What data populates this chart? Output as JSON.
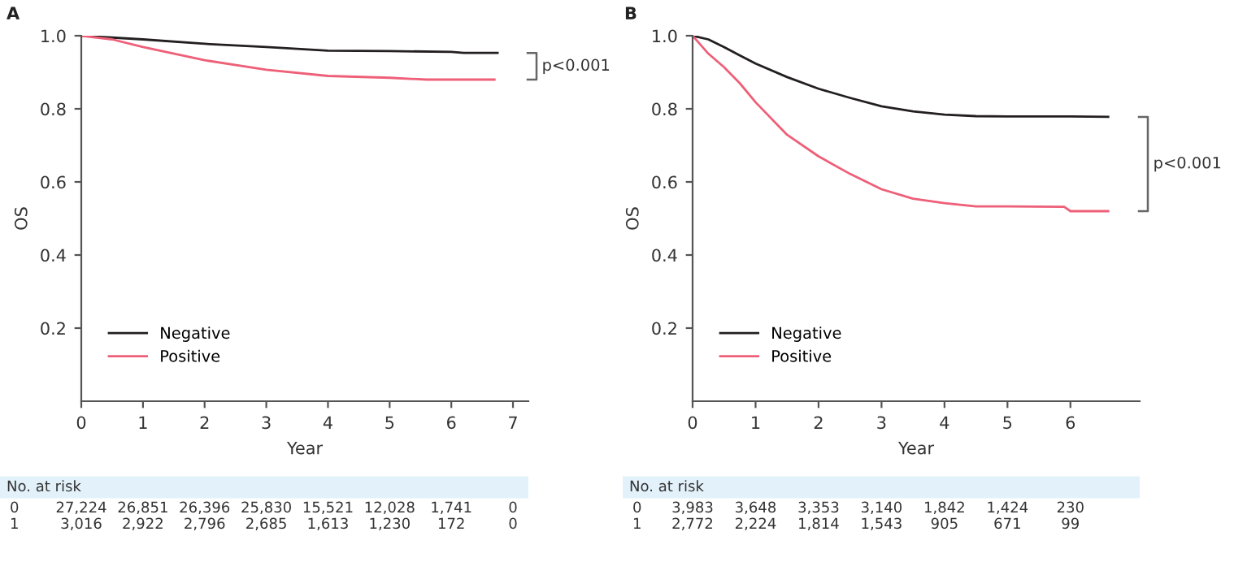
{
  "chart_data": [
    {
      "type": "line",
      "title": "A",
      "xlabel": "Year",
      "ylabel": "OS",
      "xlim": [
        0,
        7.25
      ],
      "ylim": [
        0,
        1.0
      ],
      "xticks": [
        0,
        1,
        2,
        3,
        4,
        5,
        6,
        7
      ],
      "yticks": [
        0.2,
        0.4,
        0.6,
        0.8,
        {
          "value": 1.0,
          "label": "1.0"
        }
      ],
      "grid": false,
      "legend": "bottom left",
      "series": [
        {
          "name": "Negative",
          "color": "#231f20",
          "x": [
            0,
            0.5,
            1,
            2,
            3,
            4,
            5,
            6,
            6.2,
            6.75
          ],
          "values": [
            1.0,
            0.995,
            0.99,
            0.978,
            0.969,
            0.959,
            0.958,
            0.956,
            0.953,
            0.953
          ]
        },
        {
          "name": "Positive",
          "color": "#ee5f78",
          "x": [
            0,
            0.5,
            1,
            2,
            3,
            4,
            5,
            5.6,
            6,
            6.7
          ],
          "values": [
            1.0,
            0.99,
            0.969,
            0.933,
            0.907,
            0.89,
            0.885,
            0.88,
            0.88,
            0.88
          ]
        }
      ],
      "annotations": [
        "p<0.001",
        "No. at risk",
        "0 27,224 26,851 26,396 25,830 15,521 12,028 1,741 0",
        "1 3,016 2,922 2,796 2,685 1,613 1,230 172 0"
      ]
    },
    {
      "type": "line",
      "title": "B",
      "xlabel": "Year",
      "ylabel": "OS",
      "xlim": [
        0,
        7.1
      ],
      "ylim": [
        0,
        1.0
      ],
      "xticks": [
        0,
        1,
        2,
        3,
        4,
        5,
        6
      ],
      "yticks": [
        0.2,
        0.4,
        0.6,
        0.8,
        {
          "value": 1.0,
          "label": "1.0"
        }
      ],
      "grid": false,
      "legend": "bottom left",
      "series": [
        {
          "name": "Negative",
          "color": "#231f20",
          "x": [
            0,
            0.25,
            0.5,
            0.75,
            1,
            1.5,
            2,
            2.5,
            3,
            3.5,
            4,
            4.5,
            5,
            6,
            6.6
          ],
          "values": [
            1.0,
            0.99,
            0.969,
            0.946,
            0.924,
            0.887,
            0.855,
            0.83,
            0.807,
            0.793,
            0.784,
            0.78,
            0.779,
            0.779,
            0.778
          ]
        },
        {
          "name": "Positive",
          "color": "#ee5f78",
          "x": [
            0,
            0.25,
            0.5,
            0.75,
            1,
            1.5,
            2,
            2.5,
            3,
            3.5,
            4,
            4.5,
            5,
            5.9,
            6.0,
            6.6
          ],
          "values": [
            1.0,
            0.951,
            0.914,
            0.87,
            0.818,
            0.729,
            0.67,
            0.622,
            0.58,
            0.554,
            0.542,
            0.533,
            0.533,
            0.532,
            0.52,
            0.52
          ]
        }
      ],
      "annotations": [
        "p<0.001",
        "No. at risk",
        "0 3,983 3,648 3,353 3,140 1,842 1,424 230",
        "1 2,772 2,224 1,814 1,543 905 671 99"
      ]
    }
  ]
}
